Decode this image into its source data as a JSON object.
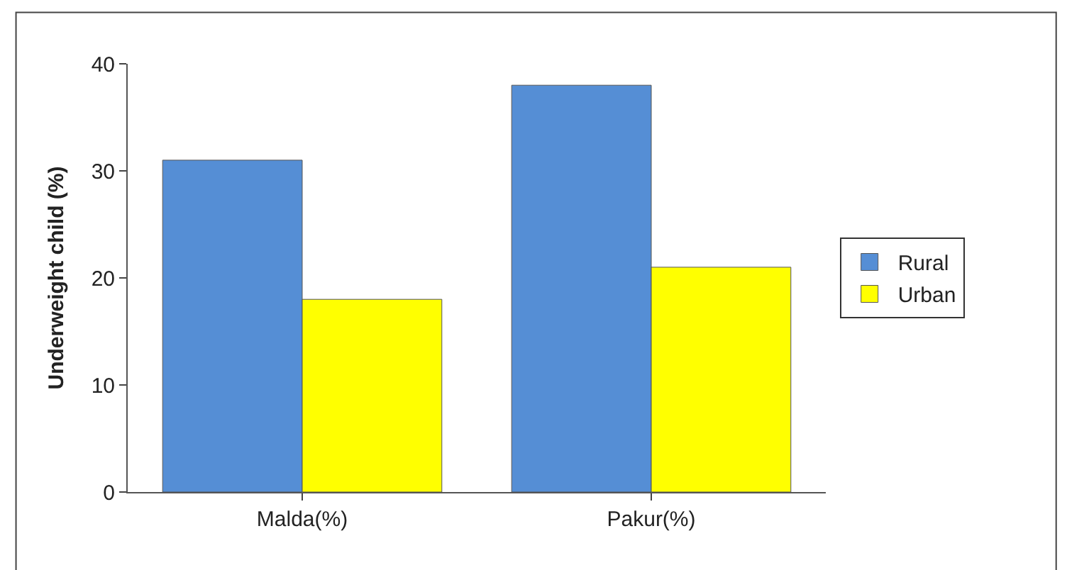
{
  "chart_data": {
    "type": "bar",
    "ylabel": "Underweight child (%)",
    "categories": [
      "Malda(%)",
      "Pakur(%)"
    ],
    "series": [
      {
        "name": "Rural",
        "color": "#558ed5",
        "values": [
          31,
          38
        ]
      },
      {
        "name": "Urban",
        "color": "#ffff00",
        "values": [
          18,
          21
        ]
      }
    ],
    "ylim": [
      0,
      40
    ],
    "yticks": [
      0,
      10,
      20,
      30,
      40
    ],
    "legend": "right"
  }
}
